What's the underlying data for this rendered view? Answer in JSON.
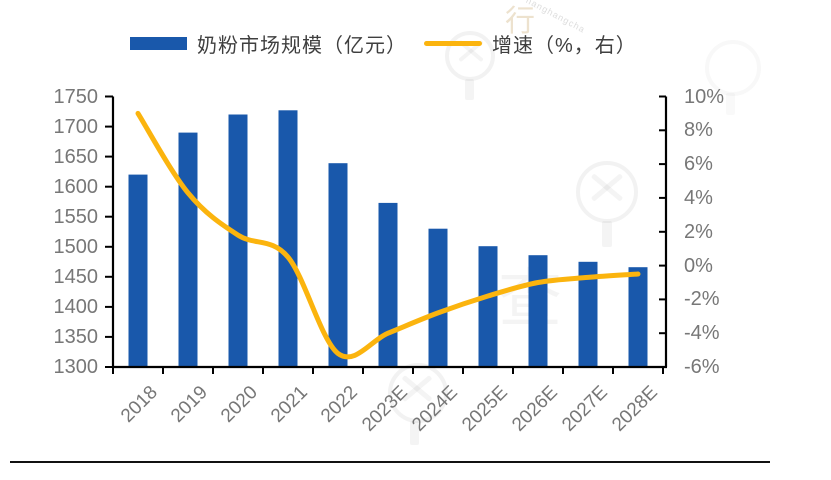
{
  "legend": {
    "bars_label": "奶粉市场规模（亿元）",
    "line_label": "增速（%，右）"
  },
  "chart_data": {
    "type": "bar",
    "subtype": "bar-line-combo",
    "categories": [
      "2018",
      "2019",
      "2020",
      "2021",
      "2022",
      "2023E",
      "2024E",
      "2025E",
      "2026E",
      "2027E",
      "2028E"
    ],
    "series": [
      {
        "name": "奶粉市场规模（亿元）",
        "type": "bar",
        "axis": "left",
        "values": [
          1620,
          1690,
          1720,
          1727,
          1639,
          1573,
          1530,
          1501,
          1486,
          1475,
          1466
        ]
      },
      {
        "name": "增速（%，右）",
        "type": "line",
        "axis": "right",
        "values": [
          9.0,
          4.3,
          1.8,
          0.5,
          -5.2,
          -4.0,
          -2.8,
          -1.8,
          -1.0,
          -0.7,
          -0.5
        ]
      }
    ],
    "left_axis": {
      "min": 1300,
      "max": 1750,
      "step": 50,
      "ticks": [
        "1750",
        "1700",
        "1650",
        "1600",
        "1550",
        "1500",
        "1450",
        "1400",
        "1350",
        "1300"
      ]
    },
    "right_axis": {
      "min": -6,
      "max": 10,
      "step": 2,
      "ticks": [
        "10%",
        "8%",
        "6%",
        "4%",
        "2%",
        "0%",
        "-2%",
        "-4%",
        "-6%"
      ]
    },
    "grid": false,
    "legend_position": "top",
    "x_label_rotation_deg": -45
  },
  "colors": {
    "bar": "#1958AB",
    "line": "#FBB40E",
    "axis": "#000000",
    "tick_label": "#777777",
    "legend_text": "#3f3f3f"
  },
  "watermark": {
    "char_top": "行",
    "char_mid": "查",
    "latin": "hanghangcha"
  }
}
